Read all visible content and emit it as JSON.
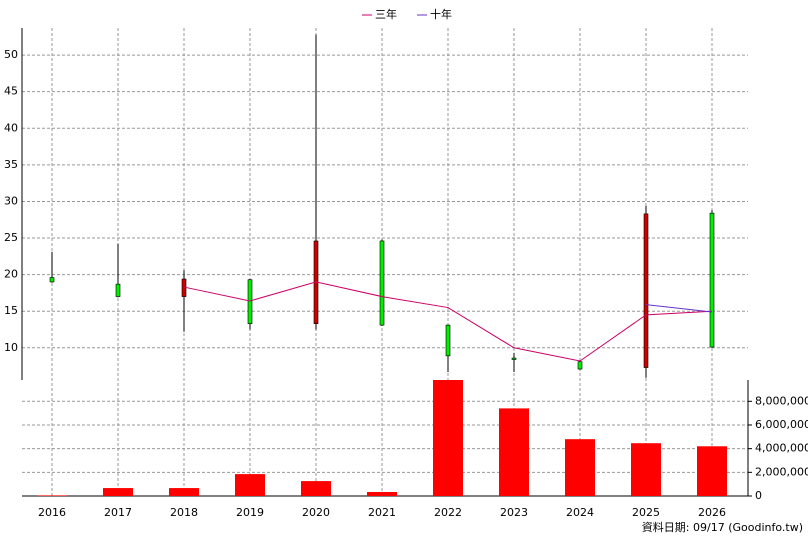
{
  "chart_data": {
    "type": "candlestick",
    "categories": [
      "2016",
      "2017",
      "2018",
      "2019",
      "2020",
      "2021",
      "2022",
      "2023",
      "2024",
      "2025",
      "2026"
    ],
    "open": [
      19.0,
      17.0,
      19.4,
      13.3,
      24.6,
      13.1,
      8.9,
      8.4,
      7.1,
      28.3,
      10.1
    ],
    "high": [
      23.1,
      24.2,
      20.6,
      19.4,
      52.8,
      24.8,
      13.2,
      9.3,
      8.3,
      29.4,
      28.8
    ],
    "low": [
      18.9,
      16.9,
      12.2,
      12.5,
      12.5,
      13.0,
      6.7,
      6.7,
      7.0,
      5.9,
      10.0
    ],
    "close": [
      19.6,
      18.7,
      17.0,
      19.3,
      13.3,
      24.6,
      13.1,
      8.6,
      8.1,
      7.3,
      28.4
    ],
    "up_color": "#00ee00",
    "down_color": "#cc0000",
    "series": [
      {
        "name": "三年",
        "color": "#cc0066",
        "values": [
          null,
          null,
          18.3,
          16.4,
          19.0,
          17.0,
          15.5,
          10.0,
          8.2,
          14.5,
          15.0
        ]
      },
      {
        "name": "十年",
        "color": "#6633cc",
        "values": [
          null,
          null,
          null,
          null,
          null,
          null,
          null,
          null,
          null,
          15.9,
          14.9
        ]
      }
    ],
    "ylim": [
      5.6,
      53.7
    ],
    "yticks": [
      10,
      15,
      20,
      25,
      30,
      35,
      40,
      45,
      50
    ],
    "grid": true,
    "volume": {
      "color": "#ff0000",
      "values": [
        50000,
        670000,
        670000,
        1850000,
        1260000,
        340000,
        9800000,
        7400000,
        4800000,
        4460000,
        4200000
      ],
      "ylim": [
        0,
        9800000
      ],
      "yticks": [
        0,
        {
          "value": 2000000,
          "label": "2,000,000"
        },
        {
          "value": 4000000,
          "label": "4,000,000"
        },
        {
          "value": 6000000,
          "label": "6,000,000"
        },
        {
          "value": 8000000,
          "label": "8,000,000"
        }
      ]
    },
    "source": "資料日期: 09/17  (Goodinfo.tw)"
  }
}
